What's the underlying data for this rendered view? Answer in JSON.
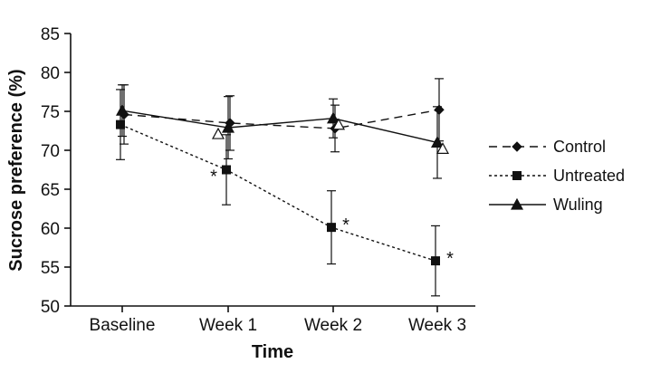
{
  "chart_data": {
    "type": "line",
    "categories": [
      "Baseline",
      "Week 1",
      "Week 2",
      "Week 3"
    ],
    "xlabel": "Time",
    "ylabel": "Sucrose preference (%)",
    "ylim": [
      50,
      85
    ],
    "yticks": [
      "50",
      "55",
      "60",
      "65",
      "70",
      "75",
      "80",
      "85"
    ],
    "grid": false,
    "legend_position": "right",
    "series": [
      {
        "name": "Control",
        "line_style": "dashed",
        "marker": "diamond",
        "color": "#111111",
        "values": [
          74.6,
          73.5,
          72.8,
          75.2
        ],
        "error": [
          3.8,
          3.5,
          3.0,
          4.0
        ]
      },
      {
        "name": "Untreated",
        "line_style": "dotted",
        "marker": "square",
        "color": "#111111",
        "values": [
          73.3,
          67.5,
          60.1,
          55.8
        ],
        "error": [
          4.5,
          4.5,
          4.7,
          4.5
        ]
      },
      {
        "name": "Wuling",
        "line_style": "solid",
        "marker": "triangle",
        "color": "#111111",
        "values": [
          75.1,
          72.9,
          74.1,
          71.0
        ],
        "error": [
          3.3,
          4.0,
          2.5,
          4.6
        ]
      }
    ],
    "annotations": [
      {
        "category": "Week 1",
        "series": "Untreated",
        "text": "*"
      },
      {
        "category": "Week 2",
        "series": "Untreated",
        "text": "*"
      },
      {
        "category": "Week 3",
        "series": "Untreated",
        "text": "*"
      }
    ],
    "hollow_markers": [
      {
        "category": "Week 1",
        "series": "Wuling",
        "marker": "open-triangle"
      },
      {
        "category": "Week 2",
        "series": "Wuling",
        "marker": "open-triangle"
      },
      {
        "category": "Week 3",
        "series": "Wuling",
        "marker": "open-triangle"
      }
    ]
  }
}
